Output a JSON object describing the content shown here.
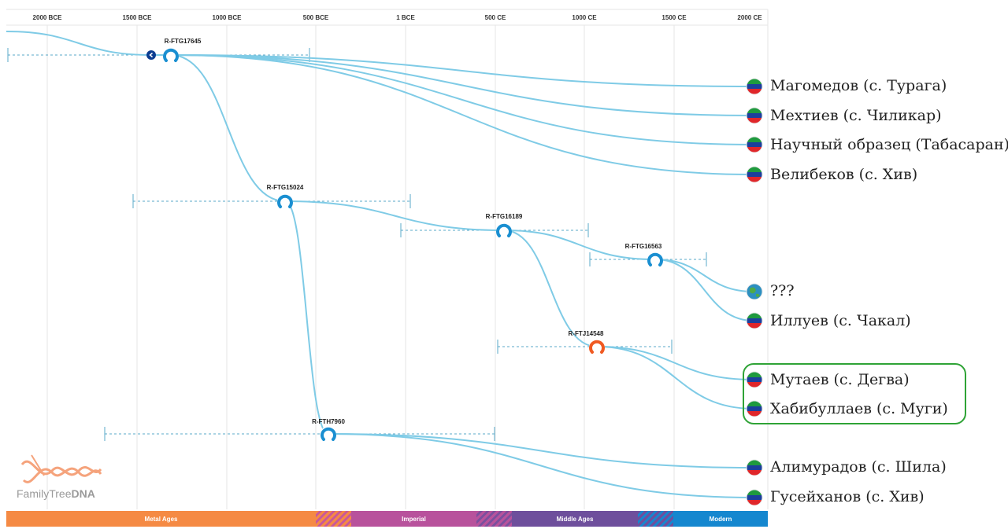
{
  "timeline": {
    "ticks": [
      "2000 BCE",
      "1500 BCE",
      "1000 BCE",
      "500 BCE",
      "1 BCE",
      "500 CE",
      "1000 CE",
      "1500 CE",
      "2000 CE"
    ]
  },
  "nodes": [
    {
      "id": "root",
      "label": "",
      "color": "#0b3d91"
    },
    {
      "id": "n1",
      "label": "R-FTG17645",
      "color": "#1a8fd1"
    },
    {
      "id": "n2",
      "label": "R-FTG15024",
      "color": "#1a8fd1"
    },
    {
      "id": "n3",
      "label": "R-FTG16189",
      "color": "#1a8fd1"
    },
    {
      "id": "n4",
      "label": "R-FTG16563",
      "color": "#1a8fd1"
    },
    {
      "id": "n5",
      "label": "R-FTJ14548",
      "color": "#f05a22"
    },
    {
      "id": "n6",
      "label": "R-FTH7960",
      "color": "#1a8fd1"
    }
  ],
  "leaves": [
    {
      "label": "Магомедов (с. Турага)",
      "flag": "dagestan-flag"
    },
    {
      "label": "Мехтиев (с. Чиликар)",
      "flag": "dagestan-flag"
    },
    {
      "label": "Научный образец (Табасаран)",
      "flag": "dagestan-flag"
    },
    {
      "label": "Велибеков (с. Хив)",
      "flag": "dagestan-flag"
    },
    {
      "label": "???",
      "flag": "globe-icon"
    },
    {
      "label": "Иллуев (с. Чакал)",
      "flag": "dagestan-flag"
    },
    {
      "label": "Мутаев (с. Дегва)",
      "flag": "dagestan-flag"
    },
    {
      "label": "Хабибуллаев (с. Муги)",
      "flag": "dagestan-flag"
    },
    {
      "label": "Алимурадов (с. Шила)",
      "flag": "dagestan-flag"
    },
    {
      "label": "Гусейханов (с. Хив)",
      "flag": "dagestan-flag"
    }
  ],
  "eras": [
    {
      "label": "Metal Ages",
      "color": "#f58a44"
    },
    {
      "label": "Imperial",
      "color": "#b8529c"
    },
    {
      "label": "Middle Ages",
      "color": "#6e4f9c"
    },
    {
      "label": "Modern",
      "color": "#1587cf"
    }
  ],
  "logo": {
    "name_regular": "FamilyTree",
    "name_bold": "DNA"
  },
  "colors": {
    "branch": "#7fcbe6",
    "grid": "#e6e6e6",
    "highlight": "#2fa336"
  }
}
